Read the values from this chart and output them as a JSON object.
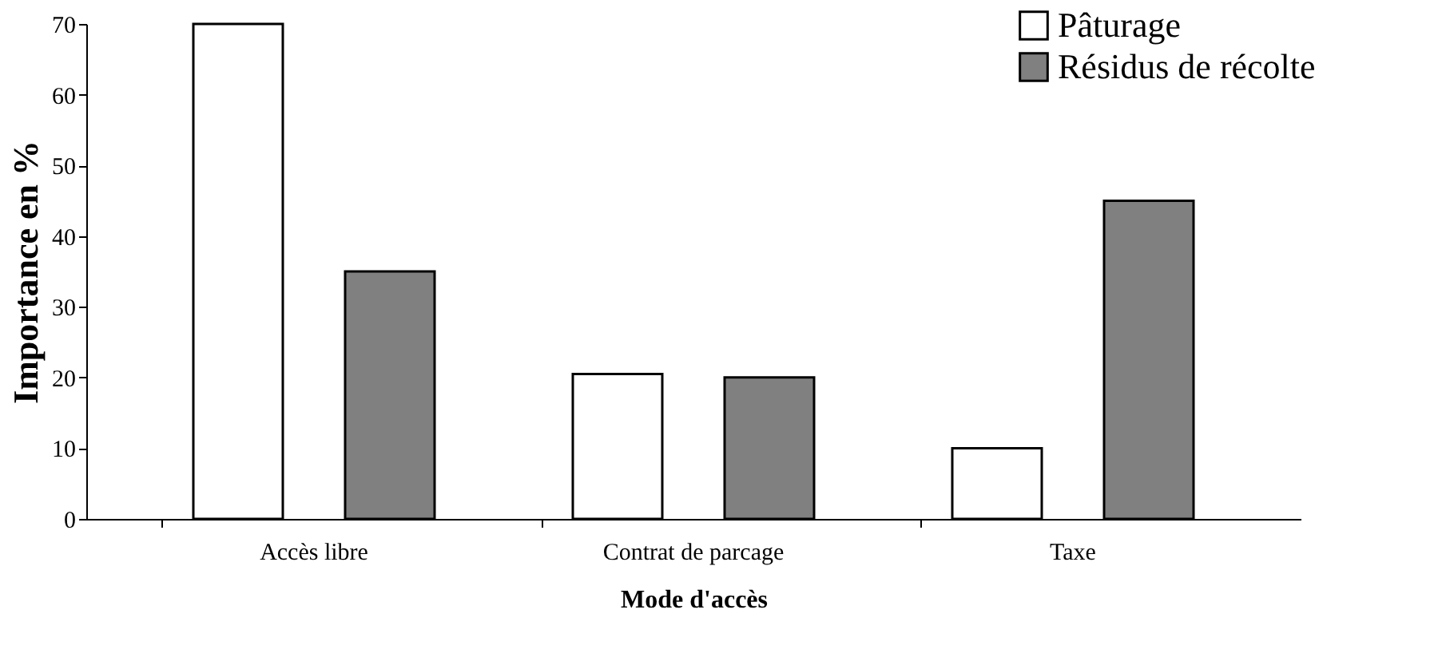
{
  "chart_data": {
    "type": "bar",
    "xlabel": "Mode d'accès",
    "ylabel": "Importance en %",
    "categories": [
      "Accès libre",
      "Contrat de parcage",
      "Taxe"
    ],
    "series": [
      {
        "name": "Pâturage",
        "color": "#ffffff",
        "values": [
          70,
          20.5,
          10
        ]
      },
      {
        "name": "Résidus de récolte",
        "color": "#808080",
        "values": [
          35,
          20,
          45
        ]
      }
    ],
    "ylim": [
      0,
      70
    ],
    "yticks": [
      0,
      10,
      20,
      30,
      40,
      50,
      60,
      70
    ],
    "grid": false,
    "legend": "top right"
  }
}
